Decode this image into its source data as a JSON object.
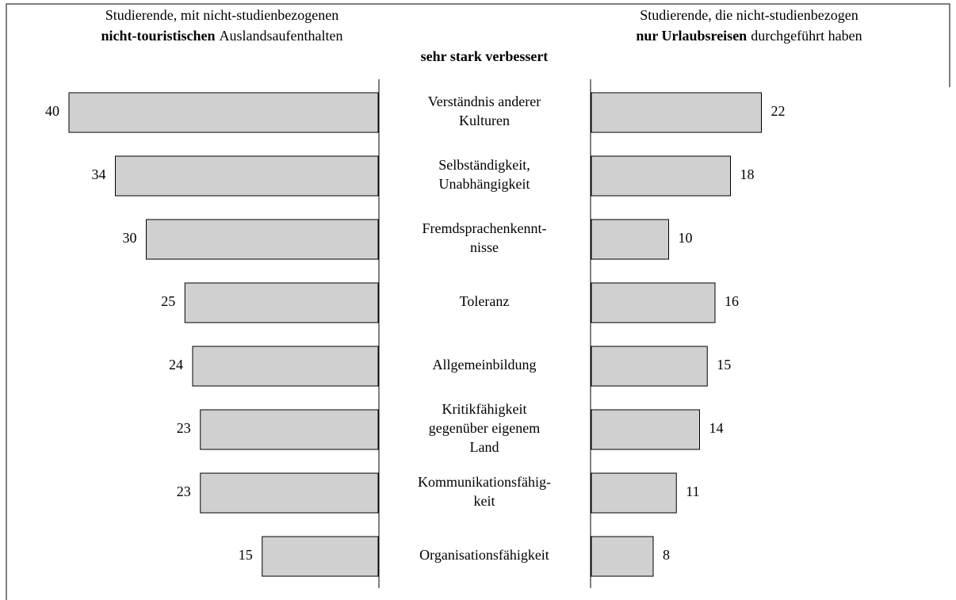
{
  "chart_data": {
    "type": "butterfly-bar",
    "center_title": "sehr stark verbessert",
    "categories": [
      [
        "Verständnis anderer",
        "Kulturen"
      ],
      [
        "Selbständigkeit,",
        "Unabhängigkeit"
      ],
      [
        "Fremdsprachenkennt-",
        "nisse"
      ],
      [
        "Toleranz"
      ],
      [
        "Allgemeinbildung"
      ],
      [
        "Kritikfähigkeit",
        "gegenüber eigenem",
        "Land"
      ],
      [
        "Kommunikationsfähig-",
        "keit"
      ],
      [
        "Organisationsfähigkeit"
      ]
    ],
    "series": [
      {
        "name_parts": [
          "Studierende, mit nicht-studienbezogenen",
          "nicht-touristischen",
          "Auslandsaufenthalten"
        ],
        "color": "#d0d0d0",
        "side": "left",
        "values": [
          40,
          34,
          30,
          25,
          24,
          23,
          23,
          15
        ]
      },
      {
        "name_parts": [
          "Studierende, die nicht-studienbezogen",
          "nur Urlaubsreisen",
          "durchgeführt haben"
        ],
        "color": "#d0d0d0",
        "side": "right",
        "values": [
          22,
          18,
          10,
          16,
          15,
          14,
          11,
          8
        ]
      }
    ]
  }
}
